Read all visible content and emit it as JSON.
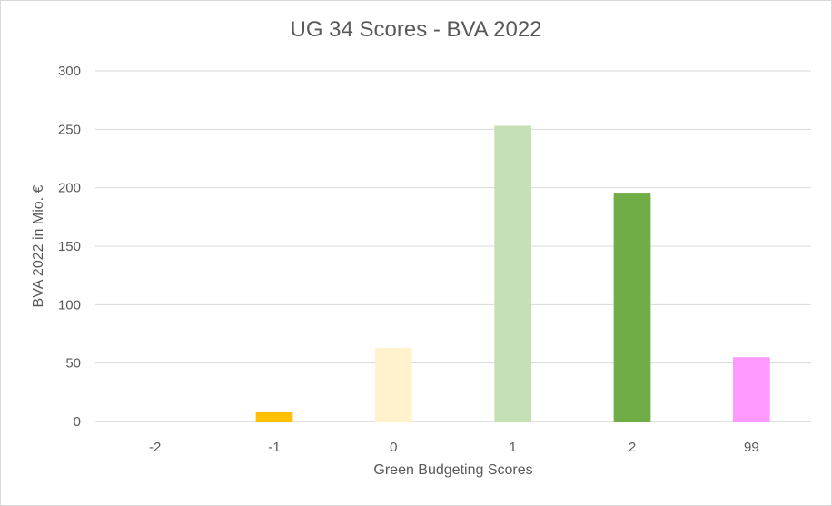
{
  "chart_data": {
    "type": "bar",
    "title": "UG 34 Scores - BVA 2022",
    "xlabel": "Green Budgeting Scores",
    "ylabel": "BVA 2022 in Mio. €",
    "categories": [
      "-2",
      "-1",
      "0",
      "1",
      "2",
      "99"
    ],
    "values": [
      0,
      8,
      63,
      253,
      195,
      55
    ],
    "colors": [
      "#ffc000",
      "#ffc000",
      "#fff2cc",
      "#c5e0b4",
      "#70ad47",
      "#ff99ff"
    ],
    "ylim": [
      0,
      300
    ],
    "yticks": [
      0,
      50,
      100,
      150,
      200,
      250,
      300
    ],
    "grid": true,
    "legend": "none"
  }
}
